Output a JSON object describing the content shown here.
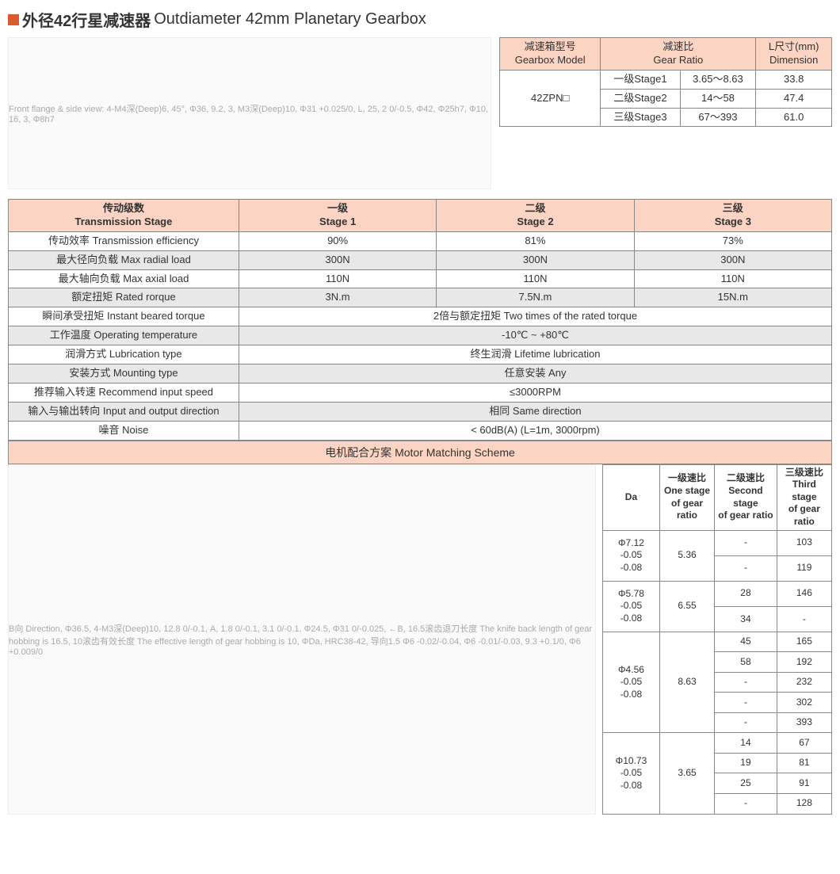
{
  "header": {
    "cn": "外径42行星减速器",
    "en": "Outdiameter 42mm Planetary Gearbox"
  },
  "table1": {
    "h1": "减速箱型号\nGearbox Model",
    "h2": "减速比\nGear Ratio",
    "h3": "L尺寸(mm)\nDimension",
    "model": "42ZPN□",
    "rows": [
      {
        "s": "一级Stage1",
        "r": "3.65～8.63",
        "l": "33.8"
      },
      {
        "s": "二级Stage2",
        "r": "14～58",
        "l": "47.4"
      },
      {
        "s": "三级Stage3",
        "r": "67～393",
        "l": "61.0"
      }
    ]
  },
  "table2": {
    "head": [
      {
        "cn": "传动级数",
        "en": "Transmission Stage"
      },
      {
        "cn": "一级",
        "en": "Stage 1"
      },
      {
        "cn": "二级",
        "en": "Stage 2"
      },
      {
        "cn": "三级",
        "en": "Stage 3"
      }
    ],
    "rows": [
      {
        "label": "传动效率 Transmission efficiency",
        "v": [
          "90%",
          "81%",
          "73%"
        ]
      },
      {
        "label": "最大径向负载 Max radial load",
        "v": [
          "300N",
          "300N",
          "300N"
        ]
      },
      {
        "label": "最大轴向负载 Max axial load",
        "v": [
          "110N",
          "110N",
          "110N"
        ]
      },
      {
        "label": "额定扭矩 Rated rorque",
        "v": [
          "3N.m",
          "7.5N.m",
          "15N.m"
        ]
      },
      {
        "label": "瞬间承受扭矩 Instant beared torque",
        "span": "2倍与额定扭矩 Two times of the rated torque"
      },
      {
        "label": "工作温度 Operating temperature",
        "span": "-10℃ ~ +80℃"
      },
      {
        "label": "润滑方式 Lubrication type",
        "span": "终生润滑 Lifetime lubrication"
      },
      {
        "label": "安装方式 Mounting type",
        "span": "任意安装 Any"
      },
      {
        "label": "推荐输入转速 Recommend input speed",
        "span": "≤3000RPM"
      },
      {
        "label": "输入与输出转向 Input and output direction",
        "span": "相同 Same direction"
      },
      {
        "label": "噪音 Noise",
        "span": "< 60dB(A) (L=1m, 3000rpm)"
      }
    ]
  },
  "section": "电机配合方案 Motor Matching Scheme",
  "table3": {
    "h": [
      "Da",
      "一级速比\nOne stage\nof gear ratio",
      "二级速比\nSecond stage\nof gear ratio",
      "三级速比\nThird stage\nof gear ratio"
    ],
    "groups": [
      {
        "da": "Φ7.12 -0.05\n-0.08",
        "r1": "5.36",
        "rows": [
          [
            "-",
            "103"
          ],
          [
            "-",
            "119"
          ]
        ]
      },
      {
        "da": "Φ5.78 -0.05\n-0.08",
        "r1": "6.55",
        "rows": [
          [
            "28",
            "146"
          ],
          [
            "34",
            "-"
          ]
        ]
      },
      {
        "da": "Φ4.56 -0.05\n-0.08",
        "r1": "8.63",
        "rows": [
          [
            "45",
            "165"
          ],
          [
            "58",
            "192"
          ],
          [
            "-",
            "232"
          ],
          [
            "-",
            "302"
          ],
          [
            "-",
            "393"
          ]
        ]
      },
      {
        "da": "Φ10.73 -0.05\n-0.08",
        "r1": "3.65",
        "rows": [
          [
            "14",
            "67"
          ],
          [
            "19",
            "81"
          ],
          [
            "25",
            "91"
          ],
          [
            "-",
            "128"
          ]
        ]
      }
    ]
  },
  "diag": {
    "d1": "Front flange & side view: 4-M4深(Deep)6, 45°, Φ36, 9.2, 3, M3深(Deep)10, Φ31 +0.025/0, L, 25, 2 0/-0.5, Φ42, Φ25h7, Φ10, 16, 3, Φ8h7",
    "d2": "B向 Direction, Φ36.5, 4-M3深(Deep)10, 12.8 0/-0.1, A, 1.8 0/-0.1, 3.1 0/-0.1, Φ24.5, Φ31 0/-0.025, ←B, 16.5滚齿退刀长度 The knife back length of gear hobbing is 16.5, 10滚齿有效长度 The effective length of gear hobbing is 10, ΦDa, HRC38-42, 导向1.5 Φ6 -0.02/-0.04, Φ6 -0.01/-0.03, 9.3 +0.1/0, Φ6 +0.009/0"
  }
}
